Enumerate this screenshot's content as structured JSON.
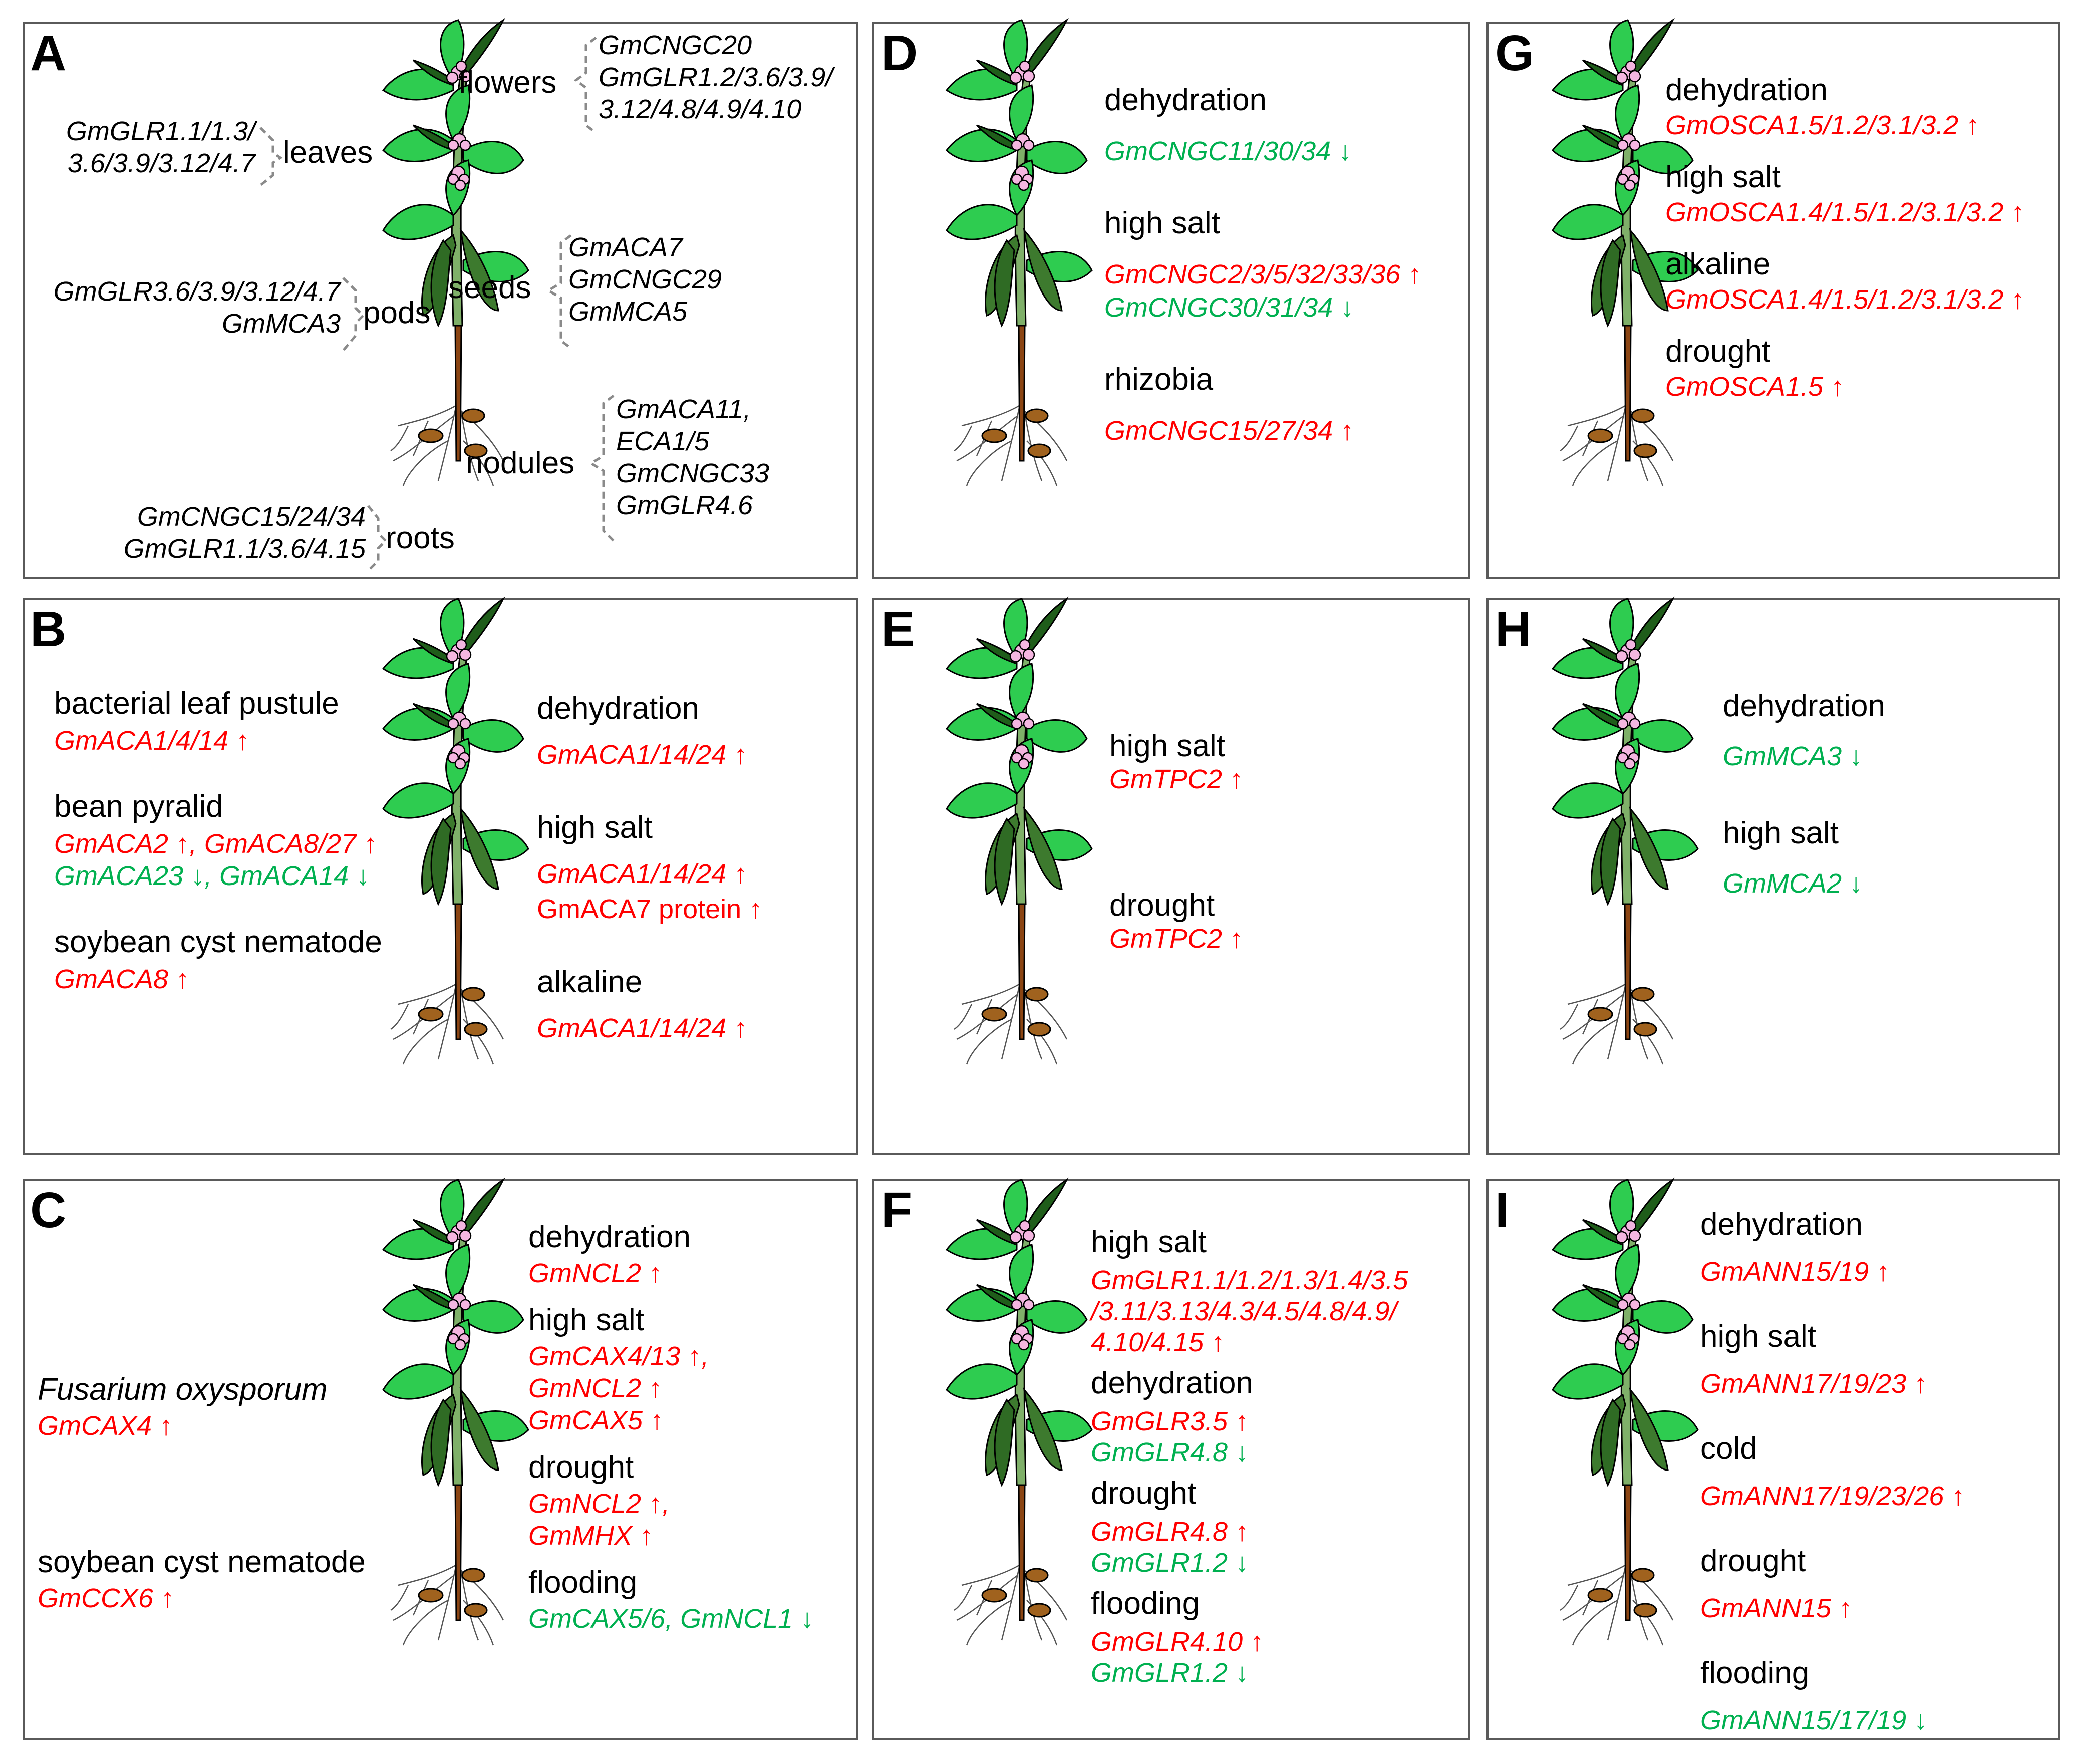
{
  "colors": {
    "upregulated": "#ff0000",
    "downregulated": "#00b050",
    "leaf": "#2ecc50",
    "pod": "#3d7a2e",
    "flower": "#f4b6e0",
    "root": "#8b4513",
    "nodule": "#a0621e"
  },
  "panels": {
    "A": {
      "letter": "A",
      "organs": {
        "flowers": "flowers",
        "leaves": "leaves",
        "seeds": "seeds",
        "pods": "pods",
        "nodules": "nodules",
        "roots": "roots"
      },
      "flowers_genes": [
        "GmCNGC20",
        "GmGLR1.2/3.6/3.9/",
        "3.12/4.8/4.9/4.10"
      ],
      "leaves_genes": [
        "GmGLR1.1/1.3/",
        "3.6/3.9/3.12/4.7"
      ],
      "seeds_genes": [
        "GmACA7",
        "GmCNGC29",
        "GmMCA5"
      ],
      "pods_genes": [
        "GmGLR3.6/3.9/3.12/4.7",
        "GmMCA3"
      ],
      "nodules_genes": [
        "GmACA11,",
        "ECA1/5",
        "GmCNGC33",
        "GmGLR4.6"
      ],
      "roots_genes": [
        "GmCNGC15/24/34",
        "GmGLR1.1/3.6/4.15"
      ]
    },
    "B": {
      "letter": "B",
      "left": [
        {
          "condition": "bacterial leaf pustule",
          "lines": [
            [
              {
                "t": "GmACA1/4/14 ↑",
                "c": "up"
              }
            ]
          ]
        },
        {
          "condition": "bean pyralid",
          "lines": [
            [
              {
                "t": "GmACA2 ↑, GmACA8/27 ↑",
                "c": "up"
              }
            ],
            [
              {
                "t": "GmACA23 ↓, GmACA14 ↓",
                "c": "down"
              }
            ]
          ]
        },
        {
          "condition": "soybean cyst nematode",
          "lines": [
            [
              {
                "t": "GmACA8 ↑",
                "c": "up"
              }
            ]
          ]
        }
      ],
      "right": [
        {
          "condition": "dehydration",
          "lines": [
            [
              {
                "t": "GmACA1/14/24 ↑",
                "c": "up"
              }
            ]
          ]
        },
        {
          "condition": "high salt",
          "lines": [
            [
              {
                "t": "GmACA1/14/24 ↑",
                "c": "up"
              }
            ],
            [
              {
                "t": "GmACA7 protein ↑",
                "c": "up",
                "plain": true
              }
            ]
          ]
        },
        {
          "condition": "alkaline",
          "lines": [
            [
              {
                "t": "GmACA1/14/24 ↑",
                "c": "up"
              }
            ]
          ]
        }
      ]
    },
    "C": {
      "letter": "C",
      "left": [
        {
          "condition": "Fusarium oxysporum",
          "lines": [
            [
              {
                "t": "GmCAX4 ↑",
                "c": "up"
              }
            ]
          ]
        },
        {
          "condition": "soybean cyst nematode",
          "lines": [
            [
              {
                "t": "GmCCX6  ↑",
                "c": "up"
              }
            ]
          ]
        }
      ],
      "right": [
        {
          "condition": "dehydration",
          "lines": [
            [
              {
                "t": "GmNCL2 ↑",
                "c": "up"
              }
            ]
          ]
        },
        {
          "condition": "high salt",
          "lines": [
            [
              {
                "t": "GmCAX4/13 ↑,",
                "c": "up"
              }
            ],
            [
              {
                "t": "GmNCL2 ↑",
                "c": "up"
              }
            ],
            [
              {
                "t": "GmCAX5 ↑",
                "c": "up"
              }
            ]
          ]
        },
        {
          "condition": "drought",
          "lines": [
            [
              {
                "t": "GmNCL2 ↑,",
                "c": "up"
              }
            ],
            [
              {
                "t": "GmMHX ↑",
                "c": "up"
              }
            ]
          ]
        },
        {
          "condition": "flooding",
          "lines": [
            [
              {
                "t": "GmCAX5/6, GmNCL1 ↓",
                "c": "down"
              }
            ]
          ]
        }
      ]
    },
    "D": {
      "letter": "D",
      "right": [
        {
          "condition": "dehydration",
          "lines": [
            [
              {
                "t": "GmCNGC11/30/34 ↓",
                "c": "down"
              }
            ]
          ]
        },
        {
          "condition": "high salt",
          "lines": [
            [
              {
                "t": "GmCNGC2/3/5/32/33/36 ↑",
                "c": "up"
              }
            ],
            [
              {
                "t": "GmCNGC30/31/34 ↓",
                "c": "down"
              }
            ]
          ]
        },
        {
          "condition": "rhizobia",
          "lines": [
            [
              {
                "t": "GmCNGC15/27/34 ↑",
                "c": "up"
              }
            ]
          ]
        }
      ]
    },
    "E": {
      "letter": "E",
      "right": [
        {
          "condition": "high salt",
          "lines": [
            [
              {
                "t": "GmTPC2 ↑",
                "c": "up"
              }
            ]
          ]
        },
        {
          "condition": "drought",
          "lines": [
            [
              {
                "t": "GmTPC2 ↑",
                "c": "up"
              }
            ]
          ]
        }
      ]
    },
    "F": {
      "letter": "F",
      "right": [
        {
          "condition": "high salt",
          "lines": [
            [
              {
                "t": "GmGLR1.1/1.2/1.3/1.4/3.5",
                "c": "up"
              }
            ],
            [
              {
                "t": "/3.11/3.13/4.3/4.5/4.8/4.9/",
                "c": "up"
              }
            ],
            [
              {
                "t": "4.10/4.15 ↑",
                "c": "up"
              }
            ]
          ]
        },
        {
          "condition": "dehydration",
          "lines": [
            [
              {
                "t": "GmGLR3.5 ↑",
                "c": "up"
              }
            ],
            [
              {
                "t": "GmGLR4.8 ↓",
                "c": "down"
              }
            ]
          ]
        },
        {
          "condition": "drought",
          "lines": [
            [
              {
                "t": "GmGLR4.8 ↑",
                "c": "up"
              }
            ],
            [
              {
                "t": "GmGLR1.2 ↓",
                "c": "down"
              }
            ]
          ]
        },
        {
          "condition": "flooding",
          "lines": [
            [
              {
                "t": "GmGLR4.10 ↑",
                "c": "up"
              }
            ],
            [
              {
                "t": "GmGLR1.2 ↓",
                "c": "down"
              }
            ]
          ]
        }
      ]
    },
    "G": {
      "letter": "G",
      "right": [
        {
          "condition": "dehydration",
          "lines": [
            [
              {
                "t": "GmOSCA1.5/1.2/3.1/3.2 ↑",
                "c": "up"
              }
            ]
          ]
        },
        {
          "condition": "high salt",
          "lines": [
            [
              {
                "t": "GmOSCA1.4/1.5/1.2/3.1/3.2 ↑",
                "c": "up"
              }
            ]
          ]
        },
        {
          "condition": "alkaline",
          "lines": [
            [
              {
                "t": "GmOSCA1.4/1.5/1.2/3.1/3.2 ↑",
                "c": "up"
              }
            ]
          ]
        },
        {
          "condition": "drought",
          "lines": [
            [
              {
                "t": "GmOSCA1.5 ↑",
                "c": "up"
              }
            ]
          ]
        }
      ]
    },
    "H": {
      "letter": "H",
      "right": [
        {
          "condition": "dehydration",
          "lines": [
            [
              {
                "t": "GmMCA3 ↓",
                "c": "down"
              }
            ]
          ]
        },
        {
          "condition": "high salt",
          "lines": [
            [
              {
                "t": "GmMCA2 ↓",
                "c": "down"
              }
            ]
          ]
        }
      ]
    },
    "I": {
      "letter": "I",
      "right": [
        {
          "condition": "dehydration",
          "lines": [
            [
              {
                "t": "GmANN15/19 ↑",
                "c": "up"
              }
            ]
          ]
        },
        {
          "condition": "high salt",
          "lines": [
            [
              {
                "t": "GmANN17/19/23 ↑",
                "c": "up"
              }
            ]
          ]
        },
        {
          "condition": "cold",
          "lines": [
            [
              {
                "t": "GmANN17/19/23/26 ↑",
                "c": "up"
              }
            ]
          ]
        },
        {
          "condition": "drought",
          "lines": [
            [
              {
                "t": "GmANN15 ↑",
                "c": "up"
              }
            ]
          ]
        },
        {
          "condition": "flooding",
          "lines": [
            [
              {
                "t": "GmANN15/17/19 ↓",
                "c": "down"
              }
            ]
          ]
        }
      ]
    }
  }
}
